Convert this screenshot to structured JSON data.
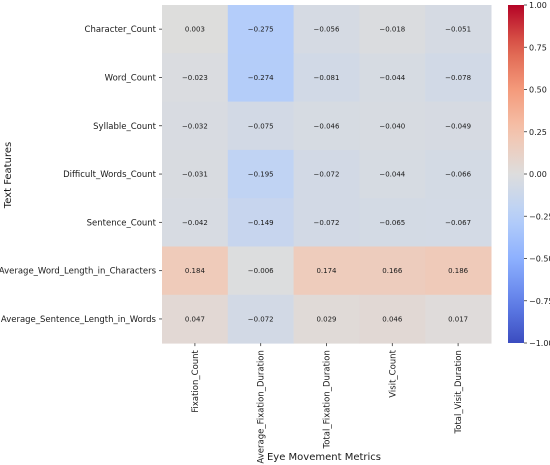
{
  "chart_data": {
    "type": "heatmap",
    "xlabel": "Eye Movement Metrics",
    "ylabel": "Text Features",
    "columns": [
      "Fixation_Count",
      "Average_Fixation_Duration",
      "Total_Fixation_Duration",
      "Visit_Count",
      "Total_Visit_Duration"
    ],
    "rows": [
      "Character_Count",
      "Word_Count",
      "Syllable_Count",
      "Difficult_Words_Count",
      "Sentence_Count",
      "Average_Word_Length_in_Characters",
      "Average_Sentence_Length_in_Words"
    ],
    "values": [
      [
        0.003,
        -0.275,
        -0.056,
        -0.018,
        -0.051
      ],
      [
        -0.023,
        -0.274,
        -0.081,
        -0.044,
        -0.078
      ],
      [
        -0.032,
        -0.075,
        -0.046,
        -0.04,
        -0.049
      ],
      [
        -0.031,
        -0.195,
        -0.072,
        -0.044,
        -0.066
      ],
      [
        -0.042,
        -0.149,
        -0.072,
        -0.065,
        -0.067
      ],
      [
        0.184,
        -0.006,
        0.174,
        0.166,
        0.186
      ],
      [
        0.047,
        -0.072,
        0.029,
        0.046,
        0.017
      ]
    ],
    "value_labels": [
      [
        "0.003",
        "−0.275",
        "−0.056",
        "−0.018",
        "−0.051"
      ],
      [
        "−0.023",
        "−0.274",
        "−0.081",
        "−0.044",
        "−0.078"
      ],
      [
        "−0.032",
        "−0.075",
        "−0.046",
        "−0.040",
        "−0.049"
      ],
      [
        "−0.031",
        "−0.195",
        "−0.072",
        "−0.044",
        "−0.066"
      ],
      [
        "−0.042",
        "−0.149",
        "−0.072",
        "−0.065",
        "−0.067"
      ],
      [
        "0.184",
        "−0.006",
        "0.174",
        "0.166",
        "0.186"
      ],
      [
        "0.047",
        "−0.072",
        "0.029",
        "0.046",
        "0.017"
      ]
    ],
    "colormap": "coolwarm",
    "vmin": -1.0,
    "vmax": 1.0,
    "colorbar_ticks": [
      1.0,
      0.75,
      0.5,
      0.25,
      0.0,
      -0.25,
      -0.5,
      -0.75,
      -1.0
    ],
    "colorbar_tick_labels": [
      "1.00",
      "0.75",
      "0.50",
      "0.25",
      "0.00",
      "−0.25",
      "−0.50",
      "−0.75",
      "−1.00"
    ],
    "colors": {
      "low": "#3b4cc0",
      "mid": "#dddddd",
      "high": "#b40426"
    }
  }
}
